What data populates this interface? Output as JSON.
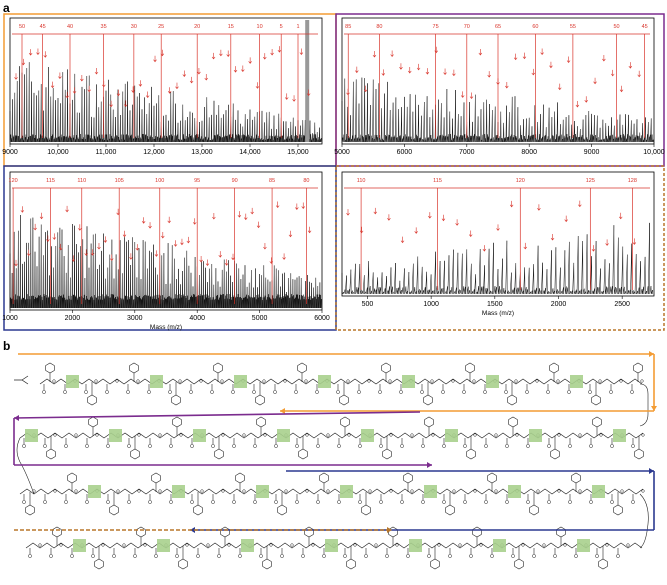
{
  "panel_a": {
    "label": "a",
    "xlabel": "Mass (m/z)",
    "spectra": [
      {
        "id": "s1",
        "frame_color": "#F39C34",
        "xlim": [
          9000,
          15500
        ],
        "ticks": [
          "9000",
          "10,000",
          "11,000",
          "12,000",
          "13,000",
          "14,000",
          "15,000"
        ],
        "tick_values": [
          9000,
          10000,
          11000,
          12000,
          13000,
          14000,
          15000
        ],
        "markers": [
          {
            "label": "50",
            "x": 9250
          },
          {
            "label": "45",
            "x": 9680
          },
          {
            "label": "40",
            "x": 10250
          },
          {
            "label": "35",
            "x": 10950
          },
          {
            "label": "30",
            "x": 11580
          },
          {
            "label": "25",
            "x": 12150
          },
          {
            "label": "20",
            "x": 12900
          },
          {
            "label": "15",
            "x": 13600
          },
          {
            "label": "10",
            "x": 14200
          },
          {
            "label": "5",
            "x": 14650
          },
          {
            "label": "1",
            "x": 15000
          }
        ],
        "density": 130
      },
      {
        "id": "s2",
        "frame_color": "#7B2C8E",
        "xlim": [
          5000,
          10000
        ],
        "ticks": [
          "5000",
          "6000",
          "7000",
          "8000",
          "9000",
          "10,000"
        ],
        "tick_values": [
          5000,
          6000,
          7000,
          8000,
          9000,
          10000
        ],
        "markers": [
          {
            "label": "85",
            "x": 5100
          },
          {
            "label": "80",
            "x": 5600
          },
          {
            "label": "75",
            "x": 6500
          },
          {
            "label": "70",
            "x": 7000
          },
          {
            "label": "65",
            "x": 7500
          },
          {
            "label": "60",
            "x": 8100
          },
          {
            "label": "55",
            "x": 8700
          },
          {
            "label": "50",
            "x": 9400
          },
          {
            "label": "45",
            "x": 9850
          }
        ],
        "density": 110
      },
      {
        "id": "s3",
        "frame_color": "#2B3990",
        "xlim": [
          1000,
          6000
        ],
        "ticks": [
          "1000",
          "2000",
          "3000",
          "4000",
          "5000",
          "6000"
        ],
        "tick_values": [
          1000,
          2000,
          3000,
          4000,
          5000,
          6000
        ],
        "markers": [
          {
            "label": "120",
            "x": 1050
          },
          {
            "label": "115",
            "x": 1650
          },
          {
            "label": "110",
            "x": 2150
          },
          {
            "label": "105",
            "x": 2750
          },
          {
            "label": "100",
            "x": 3400
          },
          {
            "label": "95",
            "x": 4000
          },
          {
            "label": "90",
            "x": 4600
          },
          {
            "label": "85",
            "x": 5200
          },
          {
            "label": "80",
            "x": 5750
          }
        ],
        "density": 150
      },
      {
        "id": "s4",
        "frame_color": "#B8772A",
        "xlim": [
          300,
          2750
        ],
        "ticks": [
          "500",
          "1000",
          "1500",
          "2000",
          "2500"
        ],
        "tick_values": [
          500,
          1000,
          1500,
          2000,
          2500
        ],
        "markers": [
          {
            "label": "110",
            "x": 450
          },
          {
            "label": "115",
            "x": 1050
          },
          {
            "label": "120",
            "x": 1700
          },
          {
            "label": "125",
            "x": 2250
          },
          {
            "label": "128",
            "x": 2580
          }
        ],
        "density": 70
      }
    ]
  },
  "panel_b": {
    "label": "b",
    "row_colors": [
      "#F39C34",
      "#7B2C8E",
      "#2B3990",
      "#B8772A"
    ],
    "highlight_color": "#A8D08D"
  }
}
